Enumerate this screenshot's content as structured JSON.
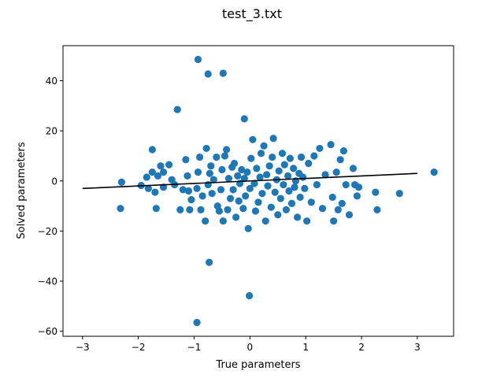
{
  "chart_data": {
    "type": "scatter",
    "title": "test_3.txt",
    "xlabel": "True parameters",
    "ylabel": "Solved parameters",
    "xlim": [
      -3.35,
      3.65
    ],
    "ylim": [
      -62,
      54
    ],
    "xticks": [
      -3,
      -2,
      -1,
      0,
      1,
      2,
      3
    ],
    "xtick_labels": [
      "−3",
      "−2",
      "−1",
      "0",
      "1",
      "2",
      "3"
    ],
    "yticks": [
      -60,
      -40,
      -20,
      0,
      20,
      40
    ],
    "ytick_labels": [
      "−60",
      "−40",
      "−20",
      "0",
      "20",
      "40"
    ],
    "grid": false,
    "colors": {
      "points": "#1f77b4",
      "fit_line": "#000000"
    },
    "fit_line": {
      "x": [
        -3,
        3
      ],
      "y": [
        -3,
        3
      ]
    },
    "points": [
      [
        -0.93,
        48.5
      ],
      [
        -0.75,
        42.7
      ],
      [
        -0.48,
        43.0
      ],
      [
        -1.3,
        28.5
      ],
      [
        -0.1,
        24.8
      ],
      [
        -0.73,
        -32.5
      ],
      [
        -0.01,
        -45.8
      ],
      [
        -0.95,
        -56.5
      ],
      [
        -2.3,
        -0.5
      ],
      [
        -2.32,
        -11.0
      ],
      [
        -1.95,
        -1.8
      ],
      [
        -1.85,
        1.5
      ],
      [
        -1.82,
        -3.0
      ],
      [
        -1.75,
        3.5
      ],
      [
        -1.75,
        12.5
      ],
      [
        -1.7,
        -4.5
      ],
      [
        -1.68,
        -11.0
      ],
      [
        -1.65,
        2.0
      ],
      [
        -1.6,
        6.0
      ],
      [
        -1.55,
        -2.5
      ],
      [
        -1.55,
        3.5
      ],
      [
        -1.45,
        6.5
      ],
      [
        -1.4,
        0.5
      ],
      [
        -1.35,
        -1.5
      ],
      [
        -1.25,
        -11.5
      ],
      [
        -1.2,
        -3.5
      ],
      [
        -1.15,
        8.5
      ],
      [
        -1.12,
        2.0
      ],
      [
        -1.1,
        -4.0
      ],
      [
        -1.08,
        -11.5
      ],
      [
        -1.05,
        -7.5
      ],
      [
        -0.95,
        -3.0
      ],
      [
        -0.93,
        3.5
      ],
      [
        -0.9,
        9.5
      ],
      [
        -0.88,
        -11.5
      ],
      [
        -0.85,
        -6.0
      ],
      [
        -0.8,
        -16.0
      ],
      [
        -0.78,
        13.0
      ],
      [
        -0.75,
        -1.5
      ],
      [
        -0.72,
        3.0
      ],
      [
        -0.7,
        6.0
      ],
      [
        -0.68,
        -5.0
      ],
      [
        -0.65,
        0.5
      ],
      [
        -0.6,
        9.5
      ],
      [
        -0.58,
        -10.0
      ],
      [
        -0.55,
        -12.0
      ],
      [
        -0.52,
        -3.5
      ],
      [
        -0.5,
        4.5
      ],
      [
        -0.48,
        -16.0
      ],
      [
        -0.45,
        10.0
      ],
      [
        -0.42,
        12.5
      ],
      [
        -0.4,
        -11.5
      ],
      [
        -0.38,
        1.0
      ],
      [
        -0.35,
        -7.0
      ],
      [
        -0.32,
        5.5
      ],
      [
        -0.3,
        -3.5
      ],
      [
        -0.28,
        7.0
      ],
      [
        -0.25,
        -14.5
      ],
      [
        -0.22,
        2.0
      ],
      [
        -0.2,
        -8.0
      ],
      [
        -0.18,
        -1.0
      ],
      [
        -0.15,
        4.5
      ],
      [
        -0.12,
        -11.0
      ],
      [
        -0.1,
        1.0
      ],
      [
        -0.08,
        -6.0
      ],
      [
        -0.05,
        3.5
      ],
      [
        -0.03,
        -19.0
      ],
      [
        0.0,
        -3.0
      ],
      [
        0.02,
        9.0
      ],
      [
        0.05,
        16.5
      ],
      [
        0.08,
        -1.0
      ],
      [
        0.1,
        -12.0
      ],
      [
        0.12,
        5.0
      ],
      [
        0.15,
        -8.5
      ],
      [
        0.18,
        1.5
      ],
      [
        0.2,
        11.0
      ],
      [
        0.22,
        -5.0
      ],
      [
        0.25,
        14.0
      ],
      [
        0.28,
        -16.0
      ],
      [
        0.3,
        2.5
      ],
      [
        0.32,
        -2.0
      ],
      [
        0.35,
        6.0
      ],
      [
        0.38,
        -10.5
      ],
      [
        0.4,
        9.5
      ],
      [
        0.42,
        17.0
      ],
      [
        0.45,
        -4.5
      ],
      [
        0.48,
        0.5
      ],
      [
        0.5,
        -13.5
      ],
      [
        0.52,
        4.0
      ],
      [
        0.55,
        -7.0
      ],
      [
        0.58,
        11.0
      ],
      [
        0.6,
        -1.5
      ],
      [
        0.62,
        6.5
      ],
      [
        0.65,
        -11.5
      ],
      [
        0.68,
        2.0
      ],
      [
        0.7,
        -4.0
      ],
      [
        0.72,
        9.0
      ],
      [
        0.75,
        -9.0
      ],
      [
        0.78,
        5.0
      ],
      [
        0.8,
        -2.5
      ],
      [
        0.82,
        0.0
      ],
      [
        0.85,
        -14.5
      ],
      [
        0.88,
        3.0
      ],
      [
        0.9,
        -6.5
      ],
      [
        0.92,
        9.5
      ],
      [
        0.95,
        1.5
      ],
      [
        0.98,
        -3.0
      ],
      [
        1.02,
        -16.0
      ],
      [
        1.05,
        7.0
      ],
      [
        1.1,
        -8.5
      ],
      [
        1.15,
        10.0
      ],
      [
        1.2,
        -1.5
      ],
      [
        1.25,
        13.0
      ],
      [
        1.3,
        -11.0
      ],
      [
        1.35,
        2.5
      ],
      [
        1.45,
        14.5
      ],
      [
        1.48,
        -6.5
      ],
      [
        1.5,
        -16.0
      ],
      [
        1.55,
        3.5
      ],
      [
        1.58,
        -11.5
      ],
      [
        1.62,
        8.5
      ],
      [
        1.65,
        -9.0
      ],
      [
        1.68,
        12.0
      ],
      [
        1.72,
        -1.5
      ],
      [
        1.78,
        -13.5
      ],
      [
        1.85,
        5.0
      ],
      [
        1.88,
        -1.5
      ],
      [
        1.92,
        -6.0
      ],
      [
        1.95,
        -2.5
      ],
      [
        2.25,
        -4.5
      ],
      [
        2.28,
        -11.5
      ],
      [
        2.68,
        -5.0
      ],
      [
        3.3,
        3.5
      ]
    ]
  }
}
